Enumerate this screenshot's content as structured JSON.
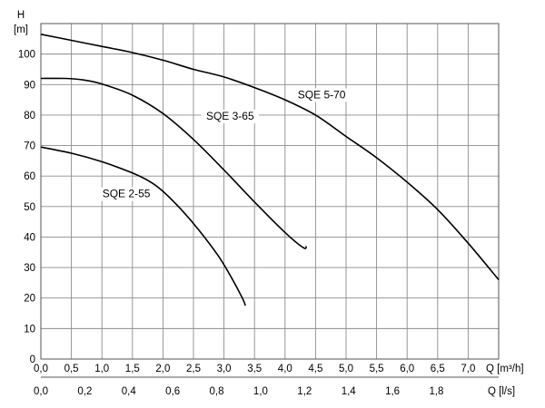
{
  "chart_data": {
    "type": "line",
    "title": "",
    "y_axis": {
      "label_symbol": "H",
      "label_unit": "[m]",
      "range": [
        0,
        110
      ],
      "ticks": [
        "0",
        "10",
        "20",
        "30",
        "40",
        "50",
        "60",
        "70",
        "80",
        "90",
        "100"
      ],
      "grid": true
    },
    "x_axis_primary": {
      "label": "Q [m³/h]",
      "range": [
        0,
        7.5
      ],
      "ticks": [
        "0,0",
        "0,5",
        "1,0",
        "1,5",
        "2,0",
        "2,5",
        "3,0",
        "3,5",
        "4,0",
        "4,5",
        "5,0",
        "5,5",
        "6,0",
        "6,5",
        "7,0"
      ],
      "grid": true
    },
    "x_axis_secondary": {
      "label": "Q [l/s]",
      "range": [
        0,
        2.0833
      ],
      "ticks": [
        "0,0",
        "0,2",
        "0,4",
        "0,6",
        "0,8",
        "1,0",
        "1,2",
        "1,4",
        "1,6",
        "1,8"
      ]
    },
    "series": [
      {
        "name": "SQE 2-55",
        "x": [
          0,
          0.5,
          1.0,
          1.5,
          1.8,
          2.0,
          2.3,
          2.6,
          2.9,
          3.1,
          3.3,
          3.35
        ],
        "y": [
          69.5,
          67.5,
          64.7,
          61.0,
          58.0,
          55.0,
          49.0,
          42.0,
          34.0,
          27.5,
          20.0,
          17.5
        ]
      },
      {
        "name": "SQE 3-65",
        "x": [
          0,
          0.4,
          0.7,
          1.0,
          1.5,
          2.0,
          2.5,
          3.0,
          3.5,
          4.0,
          4.3,
          4.35
        ],
        "y": [
          92.0,
          92.0,
          91.5,
          90.2,
          86.5,
          80.5,
          72.0,
          62.0,
          51.5,
          41.5,
          36.5,
          37.0
        ]
      },
      {
        "name": "SQE 5-70",
        "x": [
          0,
          0.5,
          1.0,
          1.5,
          2.0,
          2.5,
          3.0,
          3.5,
          4.0,
          4.5,
          5.0,
          5.5,
          6.0,
          6.5,
          7.0,
          7.5
        ],
        "y": [
          106.5,
          104.5,
          102.5,
          100.5,
          98.0,
          95.0,
          92.5,
          89.0,
          85.0,
          80.0,
          73.0,
          66.0,
          58.0,
          49.0,
          38.0,
          26.0
        ]
      }
    ]
  }
}
